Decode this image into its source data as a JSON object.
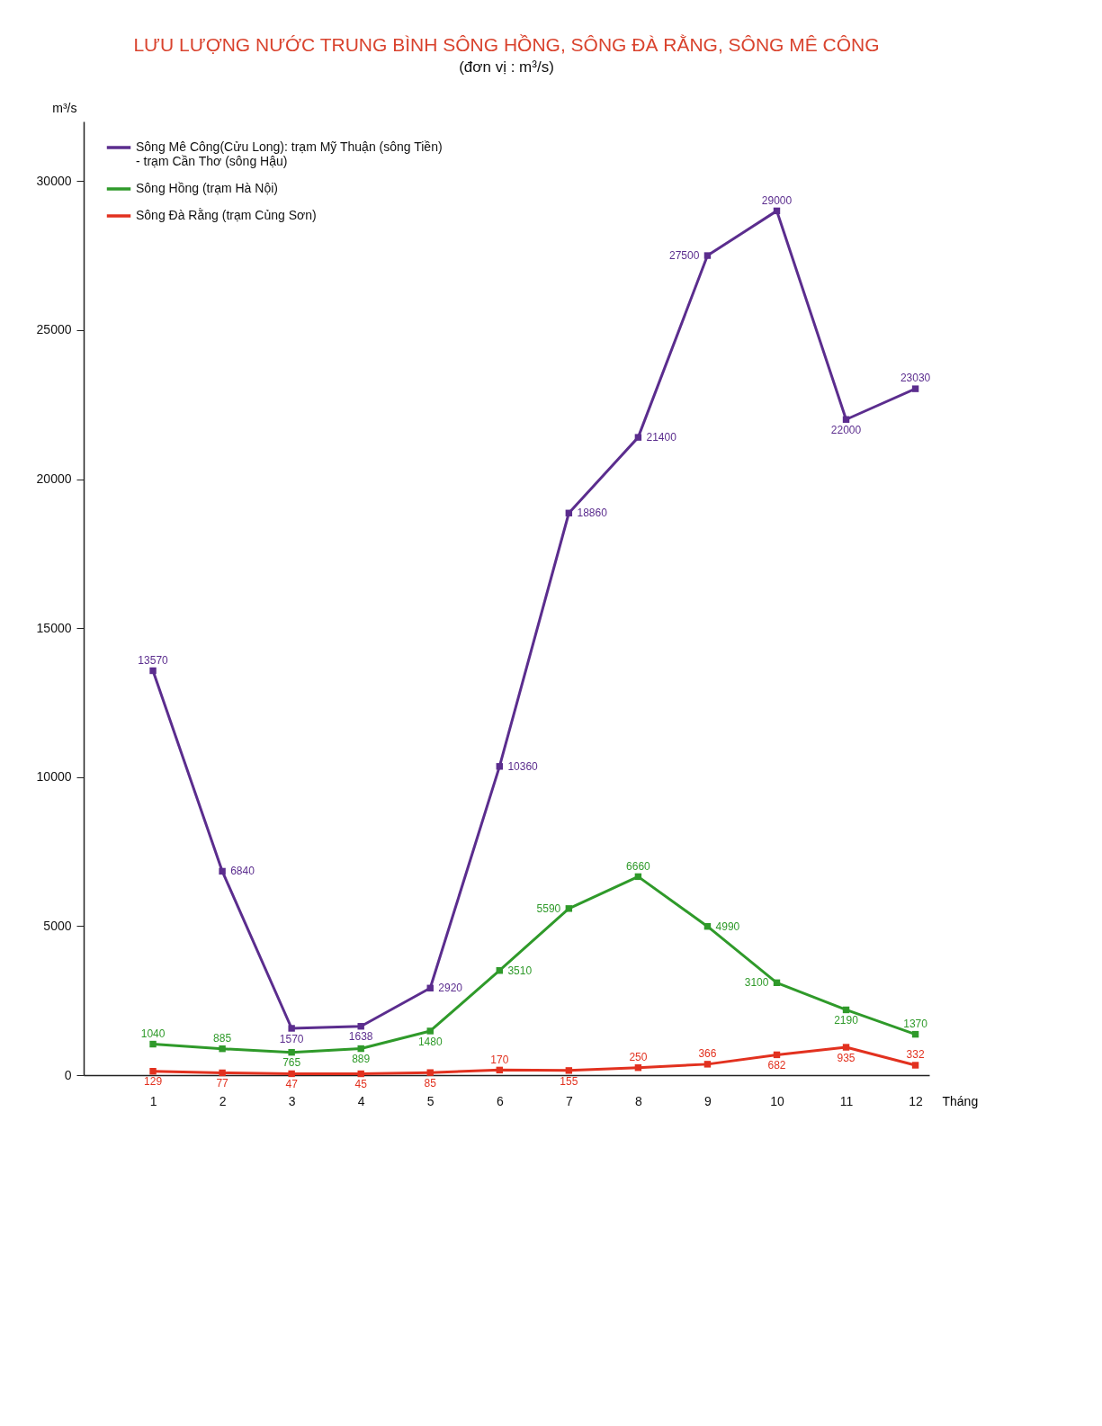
{
  "chart_data": {
    "type": "line",
    "title": "LƯU LƯỢNG NƯỚC TRUNG BÌNH SÔNG HỒNG, SÔNG ĐÀ RẰNG, SÔNG MÊ CÔNG",
    "subtitle": "(đơn vị : m³/s)",
    "xlabel": "Tháng",
    "ylabel": "m³/s",
    "x": [
      1,
      2,
      3,
      4,
      5,
      6,
      7,
      8,
      9,
      10,
      11,
      12
    ],
    "series": [
      {
        "name": "Sông Mê Công(Cửu Long): trạm Mỹ Thuận (sông Tiền) - trạm Cần Thơ (sông Hậu)",
        "color": "#5b2d8e",
        "values": [
          13570,
          6840,
          1570,
          1638,
          2920,
          10360,
          18860,
          21400,
          27500,
          29000,
          22000,
          23030
        ]
      },
      {
        "name": "Sông Hồng (trạm Hà Nội)",
        "color": "#2f9a2a",
        "values": [
          1040,
          885,
          765,
          889,
          1480,
          3510,
          5590,
          6660,
          4990,
          3100,
          2190,
          1370
        ]
      },
      {
        "name": "Sông Đà Rằng (trạm Củng Sơn)",
        "color": "#e2311f",
        "values": [
          129,
          77,
          47,
          45,
          85,
          170,
          155,
          250,
          366,
          682,
          935,
          332
        ]
      }
    ],
    "xlim": [
      0,
      12.2
    ],
    "xticks": [
      1,
      2,
      3,
      4,
      5,
      6,
      7,
      8,
      9,
      10,
      11,
      12
    ],
    "ylim": [
      0,
      32000
    ],
    "yticks": [
      0,
      5000,
      10000,
      15000,
      20000,
      25000,
      30000
    ],
    "grid": false,
    "legend": "top left",
    "marker": "square",
    "line_style": "solid",
    "data_labels": true
  }
}
